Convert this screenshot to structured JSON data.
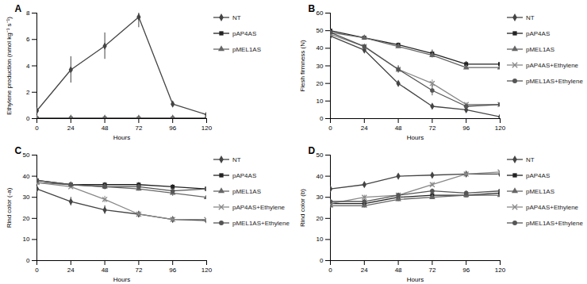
{
  "chart_data": [
    {
      "type": "line",
      "title": "A",
      "x_label": "Hours",
      "y_label": "Ethylene production (nmol kg⁻¹ s⁻¹)",
      "x": [
        0,
        24,
        48,
        72,
        96,
        120
      ],
      "xlim": [
        0,
        120
      ],
      "xticks": [
        0,
        24,
        48,
        72,
        96,
        120
      ],
      "ylim": [
        0,
        8
      ],
      "yticks": [
        0,
        2,
        4,
        6,
        8
      ],
      "grid": false,
      "legend": "right",
      "series": [
        {
          "name": "NT",
          "color": "#444444",
          "marker": "diamond",
          "values": [
            0.6,
            3.7,
            5.5,
            7.7,
            1.1,
            0.3
          ],
          "errors": [
            0.1,
            1.0,
            1.0,
            0.8,
            0.15,
            0.1
          ]
        },
        {
          "name": "pAP4AS",
          "color": "#222222",
          "marker": "square",
          "values": [
            0,
            0,
            0,
            0,
            0,
            0
          ]
        },
        {
          "name": "pMEL1AS",
          "color": "#666666",
          "marker": "triangle",
          "values": [
            0.05,
            0.05,
            0.05,
            0.05,
            0.05,
            0.05
          ]
        }
      ]
    },
    {
      "type": "line",
      "title": "B",
      "x_label": "Hours",
      "y_label": "Flesh firmness (N)",
      "x": [
        0,
        24,
        48,
        72,
        96,
        120
      ],
      "xlim": [
        0,
        120
      ],
      "xticks": [
        0,
        24,
        48,
        72,
        96,
        120
      ],
      "ylim": [
        0,
        60
      ],
      "yticks": [
        0,
        10,
        20,
        30,
        40,
        50,
        60
      ],
      "grid": false,
      "legend": "right",
      "series": [
        {
          "name": "NT",
          "color": "#444444",
          "marker": "diamond",
          "values": [
            47,
            39,
            20,
            7,
            5,
            1
          ],
          "errors": [
            0.5,
            1.5,
            1,
            1,
            1,
            0.5
          ]
        },
        {
          "name": "pAP4AS",
          "color": "#222222",
          "marker": "square",
          "values": [
            50,
            46,
            42,
            37,
            31,
            31
          ],
          "errors": [
            1,
            1,
            1,
            2,
            1.5,
            1.5
          ]
        },
        {
          "name": "pMEL1AS",
          "color": "#666666",
          "marker": "triangle",
          "values": [
            49,
            46,
            41,
            36,
            29,
            29
          ],
          "errors": [
            1,
            1,
            1,
            1.5,
            1,
            1.5
          ]
        },
        {
          "name": "pAP4AS+Ethylene",
          "color": "#888888",
          "marker": "times",
          "values": [
            48,
            41,
            28,
            20,
            8,
            8
          ],
          "errors": [
            1,
            1.5,
            2,
            2,
            1,
            1
          ]
        },
        {
          "name": "pMEL1AS+Ethylene",
          "color": "#555555",
          "marker": "circle",
          "values": [
            49,
            41,
            28,
            16,
            7,
            8
          ],
          "errors": [
            1,
            1,
            2,
            3,
            1,
            1
          ]
        }
      ]
    },
    {
      "type": "line",
      "title": "C",
      "x_label": "Hours",
      "y_label": "Rind color (-a)",
      "x": [
        0,
        24,
        48,
        72,
        96,
        120
      ],
      "xlim": [
        0,
        120
      ],
      "xticks": [
        0,
        24,
        48,
        72,
        96,
        120
      ],
      "ylim": [
        0,
        50
      ],
      "yticks": [
        0,
        10,
        20,
        30,
        40,
        50
      ],
      "grid": false,
      "legend": "right",
      "series": [
        {
          "name": "NT",
          "color": "#444444",
          "marker": "diamond",
          "values": [
            34,
            28,
            24,
            22,
            19.5,
            19
          ],
          "errors": [
            1,
            2,
            2,
            1,
            1,
            2
          ]
        },
        {
          "name": "pAP4AS",
          "color": "#222222",
          "marker": "square",
          "values": [
            38,
            36,
            36,
            36,
            35,
            34
          ],
          "errors": [
            1,
            1,
            1,
            1,
            1,
            1
          ]
        },
        {
          "name": "pMEL1AS",
          "color": "#666666",
          "marker": "triangle",
          "values": [
            37,
            36,
            35,
            34,
            32,
            30
          ],
          "errors": [
            1,
            1,
            1,
            1,
            1.5,
            1
          ]
        },
        {
          "name": "pAP4AS+Ethylene",
          "color": "#888888",
          "marker": "times",
          "values": [
            37,
            35,
            29,
            22,
            19.5,
            19.5
          ],
          "errors": [
            1,
            1,
            1.5,
            1,
            1,
            2
          ]
        },
        {
          "name": "pMEL1AS+Ethylene",
          "color": "#555555",
          "marker": "circle",
          "values": [
            38,
            36,
            35,
            35,
            33,
            34
          ],
          "errors": [
            1,
            1,
            1,
            1,
            1,
            1
          ]
        }
      ]
    },
    {
      "type": "line",
      "title": "D",
      "x_label": "Hours",
      "y_label": "Rind color (b)",
      "x": [
        0,
        24,
        48,
        72,
        96,
        120
      ],
      "xlim": [
        0,
        120
      ],
      "xticks": [
        0,
        24,
        48,
        72,
        96,
        120
      ],
      "ylim": [
        0,
        50
      ],
      "yticks": [
        0,
        10,
        20,
        30,
        40,
        50
      ],
      "grid": false,
      "legend": "right",
      "series": [
        {
          "name": "NT",
          "color": "#444444",
          "marker": "diamond",
          "values": [
            34,
            36,
            40,
            40.5,
            41,
            41
          ],
          "errors": [
            1,
            1,
            1,
            0.5,
            1,
            1
          ]
        },
        {
          "name": "pAP4AS",
          "color": "#222222",
          "marker": "square",
          "values": [
            27,
            27,
            30,
            31,
            31,
            32
          ],
          "errors": [
            1,
            1,
            1,
            1,
            1,
            1
          ]
        },
        {
          "name": "pMEL1AS",
          "color": "#666666",
          "marker": "triangle",
          "values": [
            26,
            26,
            29,
            30,
            31,
            31
          ],
          "errors": [
            1,
            1,
            1,
            1,
            1,
            1
          ]
        },
        {
          "name": "pAP4AS+Ethylene",
          "color": "#888888",
          "marker": "times",
          "values": [
            27,
            30,
            31,
            36,
            41,
            42
          ],
          "errors": [
            1,
            1,
            1,
            1,
            1,
            1
          ]
        },
        {
          "name": "pMEL1AS+Ethylene",
          "color": "#555555",
          "marker": "circle",
          "values": [
            28,
            28,
            31,
            33,
            32,
            33
          ],
          "errors": [
            1,
            1,
            1,
            1,
            1,
            1
          ]
        }
      ]
    }
  ]
}
